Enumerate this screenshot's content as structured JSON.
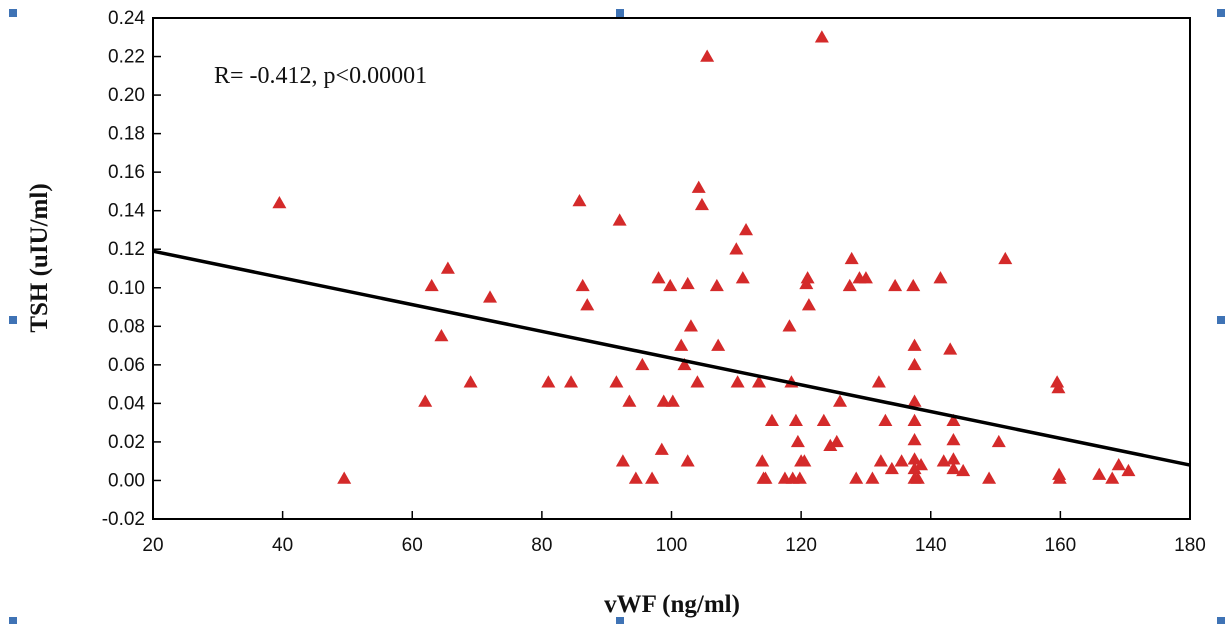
{
  "chart_data": {
    "type": "scatter",
    "xlabel": "vWF (ng/ml)",
    "ylabel": "TSH (uIU/ml)",
    "annotation": "R= -0.412, p<0.00001",
    "xlim": [
      20,
      180
    ],
    "ylim": [
      -0.02,
      0.24
    ],
    "xticks": [
      "20",
      "40",
      "60",
      "80",
      "100",
      "120",
      "140",
      "160",
      "180"
    ],
    "yticks": [
      "-0.02",
      "0.00",
      "0.02",
      "0.04",
      "0.06",
      "0.08",
      "0.10",
      "0.12",
      "0.14",
      "0.16",
      "0.18",
      "0.20",
      "0.22",
      "0.24"
    ],
    "grid": false,
    "marker": "triangle",
    "marker_color": "#d42a2a",
    "line_color": "#000000",
    "trendline": {
      "x": [
        20,
        180
      ],
      "y": [
        0.119,
        0.008
      ]
    },
    "points": [
      [
        39.5,
        0.144
      ],
      [
        49.5,
        0.001
      ],
      [
        62,
        0.041
      ],
      [
        63,
        0.101
      ],
      [
        64.5,
        0.075
      ],
      [
        65.5,
        0.11
      ],
      [
        69,
        0.051
      ],
      [
        72,
        0.095
      ],
      [
        81,
        0.051
      ],
      [
        84.5,
        0.051
      ],
      [
        85.8,
        0.145
      ],
      [
        86.3,
        0.101
      ],
      [
        87,
        0.091
      ],
      [
        91.5,
        0.051
      ],
      [
        92,
        0.135
      ],
      [
        92.5,
        0.01
      ],
      [
        93.5,
        0.041
      ],
      [
        94.5,
        0.001
      ],
      [
        95.5,
        0.06
      ],
      [
        97,
        0.001
      ],
      [
        98,
        0.105
      ],
      [
        98.5,
        0.016
      ],
      [
        98.8,
        0.041
      ],
      [
        99.8,
        0.101
      ],
      [
        100.2,
        0.041
      ],
      [
        101.5,
        0.07
      ],
      [
        102,
        0.06
      ],
      [
        102.5,
        0.01
      ],
      [
        102.5,
        0.102
      ],
      [
        103,
        0.08
      ],
      [
        104,
        0.051
      ],
      [
        104.2,
        0.152
      ],
      [
        104.7,
        0.143
      ],
      [
        105.5,
        0.22
      ],
      [
        107,
        0.101
      ],
      [
        107.2,
        0.07
      ],
      [
        110,
        0.12
      ],
      [
        110.2,
        0.051
      ],
      [
        111,
        0.105
      ],
      [
        111.5,
        0.13
      ],
      [
        113.5,
        0.051
      ],
      [
        114,
        0.01
      ],
      [
        114.2,
        0.001
      ],
      [
        114.5,
        0.001
      ],
      [
        115.5,
        0.031
      ],
      [
        117.5,
        0.001
      ],
      [
        118.2,
        0.08
      ],
      [
        118.5,
        0.051
      ],
      [
        118.7,
        0.001
      ],
      [
        119.2,
        0.031
      ],
      [
        119.5,
        0.02
      ],
      [
        119.8,
        0.001
      ],
      [
        120,
        0.01
      ],
      [
        120.5,
        0.01
      ],
      [
        120.8,
        0.102
      ],
      [
        121,
        0.105
      ],
      [
        121.2,
        0.091
      ],
      [
        123.2,
        0.23
      ],
      [
        123.5,
        0.031
      ],
      [
        124.5,
        0.018
      ],
      [
        125.5,
        0.02
      ],
      [
        126,
        0.041
      ],
      [
        127.5,
        0.101
      ],
      [
        127.8,
        0.115
      ],
      [
        128.5,
        0.001
      ],
      [
        129,
        0.105
      ],
      [
        130,
        0.105
      ],
      [
        131,
        0.001
      ],
      [
        132,
        0.051
      ],
      [
        132.3,
        0.01
      ],
      [
        133,
        0.031
      ],
      [
        134,
        0.006
      ],
      [
        134.5,
        0.101
      ],
      [
        135.5,
        0.01
      ],
      [
        137.3,
        0.101
      ],
      [
        137.5,
        0.07
      ],
      [
        137.5,
        0.06
      ],
      [
        137.5,
        0.041
      ],
      [
        137.5,
        0.031
      ],
      [
        137.5,
        0.021
      ],
      [
        137.5,
        0.011
      ],
      [
        137.5,
        0.006
      ],
      [
        137.5,
        0.001
      ],
      [
        138,
        0.001
      ],
      [
        138.5,
        0.008
      ],
      [
        141.5,
        0.105
      ],
      [
        142,
        0.01
      ],
      [
        143,
        0.068
      ],
      [
        143.5,
        0.031
      ],
      [
        143.5,
        0.021
      ],
      [
        143.5,
        0.011
      ],
      [
        143.5,
        0.006
      ],
      [
        145,
        0.005
      ],
      [
        149,
        0.001
      ],
      [
        150.5,
        0.02
      ],
      [
        151.5,
        0.115
      ],
      [
        159.5,
        0.051
      ],
      [
        159.7,
        0.048
      ],
      [
        159.8,
        0.003
      ],
      [
        159.9,
        0.001
      ],
      [
        166,
        0.003
      ],
      [
        168,
        0.001
      ],
      [
        169,
        0.008
      ],
      [
        170.5,
        0.005
      ]
    ]
  }
}
